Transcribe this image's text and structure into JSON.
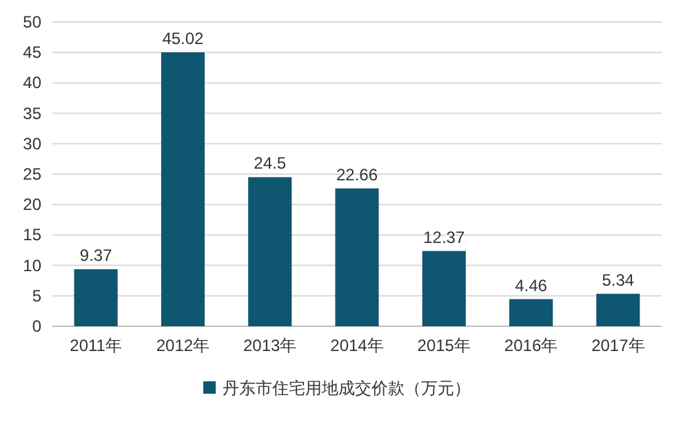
{
  "chart_data": {
    "type": "bar",
    "categories": [
      "2011年",
      "2012年",
      "2013年",
      "2014年",
      "2015年",
      "2016年",
      "2017年"
    ],
    "series": [
      {
        "name": "丹东市住宅用地成交价款（万元）",
        "color": "#0f5671",
        "values": [
          9.37,
          45.02,
          24.5,
          22.66,
          12.37,
          4.46,
          5.34
        ]
      }
    ],
    "ylim": [
      0,
      50
    ],
    "yticks": [
      0,
      5,
      10,
      15,
      20,
      25,
      30,
      35,
      40,
      45,
      50
    ],
    "grid": "y",
    "legend": "bottom",
    "data_labels": true
  }
}
